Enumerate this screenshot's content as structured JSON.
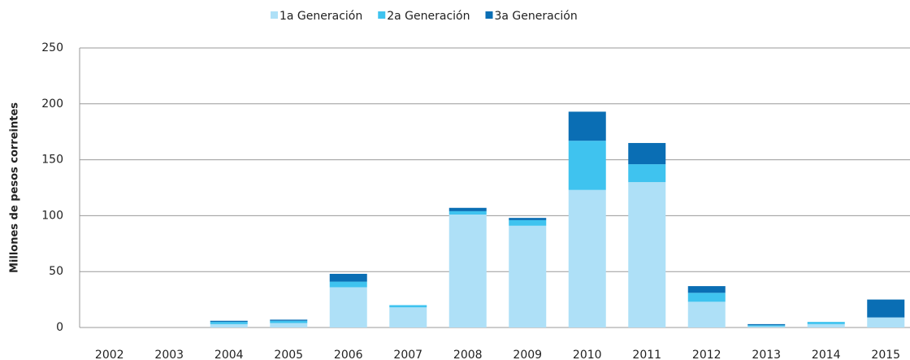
{
  "chart_data": {
    "type": "stacked_bar",
    "ylabel": "Millones de pesos  correintes",
    "categories": [
      "2002",
      "2003",
      "2004",
      "2005",
      "2006",
      "2007",
      "2008",
      "2009",
      "2010",
      "2011",
      "2012",
      "2013",
      "2014",
      "2015"
    ],
    "series": [
      {
        "name": "1a Generación",
        "color": "#aee0f7",
        "values": [
          0,
          0,
          3,
          4,
          36,
          18,
          101,
          91,
          123,
          130,
          23,
          1,
          3,
          9
        ]
      },
      {
        "name": "2a Generación",
        "color": "#3fc3ef",
        "values": [
          0,
          0,
          2,
          2,
          5,
          2,
          3,
          5,
          44,
          16,
          8,
          1,
          2,
          0
        ]
      },
      {
        "name": "3a Generación",
        "color": "#0a6eb4",
        "values": [
          0,
          0,
          1,
          1,
          7,
          0,
          3,
          2,
          26,
          19,
          6,
          1,
          0,
          16
        ]
      }
    ],
    "ylim": [
      0,
      250
    ],
    "yticks": [
      0,
      50,
      100,
      150,
      200,
      250
    ],
    "grid": true,
    "legend": "top"
  }
}
